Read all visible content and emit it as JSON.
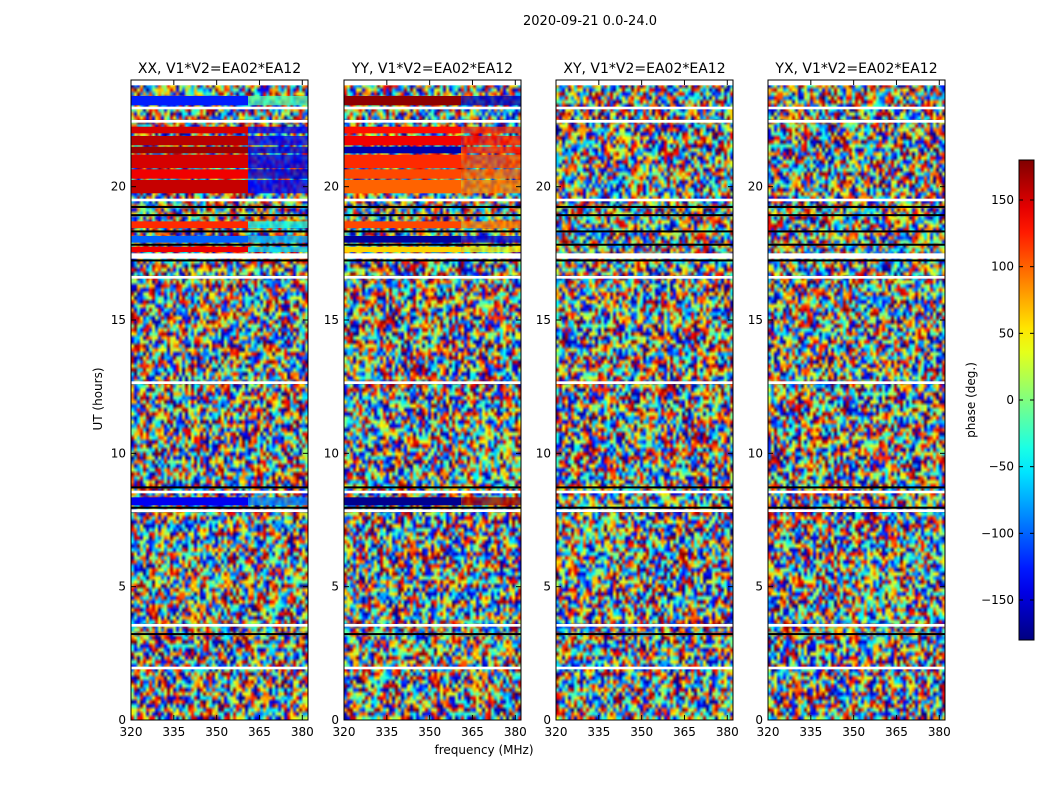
{
  "figure": {
    "suptitle": "2020-09-21 0.0-24.0",
    "xlabel": "frequency (MHz)",
    "ylabel": "UT (hours)",
    "colorbar_label": "phase (deg.)",
    "colorbar_ticks": [
      150,
      100,
      50,
      0,
      -50,
      -100,
      -150
    ],
    "colorbar_range": [
      -180,
      180
    ],
    "colors": {
      "axes": "#000000",
      "background": "#ffffff",
      "gap": "#ffffff",
      "flag": "#000000"
    }
  },
  "chart_data": [
    {
      "type": "heatmap",
      "title": "XX, V1*V2=EA02*EA12",
      "xlabel": "frequency (MHz)",
      "ylabel": "UT (hours)",
      "xlim": [
        320,
        382
      ],
      "ylim": [
        0,
        24
      ],
      "xticks": [
        320,
        335,
        350,
        365,
        380
      ],
      "yticks": [
        0,
        5,
        10,
        15,
        20
      ],
      "zlabel": "phase (deg.)",
      "zlim": [
        -180,
        180
      ],
      "coherent_bands": [
        {
          "t0": 23.05,
          "t1": 23.4,
          "f_break": 361,
          "phase_low_freq": -125,
          "phase_high_freq": -20
        },
        {
          "t0": 22.0,
          "t1": 22.25,
          "f_break": 361,
          "phase_low_freq": 150,
          "phase_high_freq": -140
        },
        {
          "t0": 21.55,
          "t1": 21.9,
          "f_break": 361,
          "phase_low_freq": 160,
          "phase_high_freq": -140
        },
        {
          "t0": 21.25,
          "t1": 21.5,
          "f_break": 361,
          "phase_low_freq": 170,
          "phase_high_freq": -150
        },
        {
          "t0": 20.7,
          "t1": 21.2,
          "f_break": 361,
          "phase_low_freq": 150,
          "phase_high_freq": -145
        },
        {
          "t0": 20.3,
          "t1": 20.65,
          "f_break": 361,
          "phase_low_freq": 140,
          "phase_high_freq": -150
        },
        {
          "t0": 19.75,
          "t1": 20.25,
          "f_break": 361,
          "phase_low_freq": 155,
          "phase_high_freq": -140
        },
        {
          "t0": 18.45,
          "t1": 18.7,
          "f_break": 361,
          "phase_low_freq": 120,
          "phase_high_freq": -40
        },
        {
          "t0": 17.9,
          "t1": 18.15,
          "f_break": 361,
          "phase_low_freq": -100,
          "phase_high_freq": -70
        },
        {
          "t0": 17.55,
          "t1": 17.75,
          "f_break": 361,
          "phase_low_freq": 140,
          "phase_high_freq": -60
        },
        {
          "t0": 8.05,
          "t1": 8.35,
          "f_break": 361,
          "phase_low_freq": -140,
          "phase_high_freq": -90
        }
      ]
    },
    {
      "type": "heatmap",
      "title": "YY, V1*V2=EA02*EA12",
      "xlabel": "frequency (MHz)",
      "ylabel": "UT (hours)",
      "xlim": [
        320,
        382
      ],
      "ylim": [
        0,
        24
      ],
      "xticks": [
        320,
        335,
        350,
        365,
        380
      ],
      "yticks": [
        0,
        5,
        10,
        15,
        20
      ],
      "zlabel": "phase (deg.)",
      "zlim": [
        -180,
        180
      ],
      "coherent_bands": [
        {
          "t0": 23.05,
          "t1": 23.4,
          "f_break": 361,
          "phase_low_freq": 175,
          "phase_high_freq": -160
        },
        {
          "t0": 22.0,
          "t1": 22.25,
          "f_break": 361,
          "phase_low_freq": 130,
          "phase_high_freq": 120
        },
        {
          "t0": 21.55,
          "t1": 21.9,
          "f_break": 361,
          "phase_low_freq": 140,
          "phase_high_freq": 130
        },
        {
          "t0": 21.25,
          "t1": 21.5,
          "f_break": 361,
          "phase_low_freq": -165,
          "phase_high_freq": 125
        },
        {
          "t0": 20.7,
          "t1": 21.2,
          "f_break": 361,
          "phase_low_freq": 120,
          "phase_high_freq": 110
        },
        {
          "t0": 20.3,
          "t1": 20.65,
          "f_break": 361,
          "phase_low_freq": 110,
          "phase_high_freq": 100
        },
        {
          "t0": 19.75,
          "t1": 20.25,
          "f_break": 361,
          "phase_low_freq": 100,
          "phase_high_freq": 90
        },
        {
          "t0": 18.45,
          "t1": 18.7,
          "f_break": 361,
          "phase_low_freq": 110,
          "phase_high_freq": 90
        },
        {
          "t0": 17.9,
          "t1": 18.15,
          "f_break": 361,
          "phase_low_freq": -170,
          "phase_high_freq": -150
        },
        {
          "t0": 17.55,
          "t1": 17.75,
          "f_break": 361,
          "phase_low_freq": 60,
          "phase_high_freq": 40
        },
        {
          "t0": 8.05,
          "t1": 8.35,
          "f_break": 361,
          "phase_low_freq": -175,
          "phase_high_freq": 170
        }
      ]
    },
    {
      "type": "heatmap",
      "title": "XY, V1*V2=EA02*EA12",
      "xlabel": "frequency (MHz)",
      "ylabel": "UT (hours)",
      "xlim": [
        320,
        382
      ],
      "ylim": [
        0,
        24
      ],
      "xticks": [
        320,
        335,
        350,
        365,
        380
      ],
      "yticks": [
        0,
        5,
        10,
        15,
        20
      ],
      "zlabel": "phase (deg.)",
      "zlim": [
        -180,
        180
      ],
      "coherent_bands": []
    },
    {
      "type": "heatmap",
      "title": "YX, V1*V2=EA02*EA12",
      "xlabel": "frequency (MHz)",
      "ylabel": "UT (hours)",
      "xlim": [
        320,
        382
      ],
      "ylim": [
        0,
        24
      ],
      "xticks": [
        320,
        335,
        350,
        365,
        380
      ],
      "yticks": [
        0,
        5,
        10,
        15,
        20
      ],
      "zlabel": "phase (deg.)",
      "zlim": [
        -180,
        180
      ],
      "coherent_bands": []
    }
  ],
  "time_gaps_hours": [
    [
      23.8,
      24.0
    ],
    [
      22.9,
      23.0
    ],
    [
      22.4,
      22.5
    ],
    [
      19.45,
      19.55
    ],
    [
      17.3,
      17.5
    ],
    [
      16.55,
      16.65
    ],
    [
      12.6,
      12.7
    ],
    [
      8.5,
      8.6
    ],
    [
      7.8,
      7.9
    ],
    [
      3.5,
      3.6
    ],
    [
      1.9,
      2.0
    ]
  ],
  "flagged_rows_hours": [
    [
      19.2,
      19.28
    ],
    [
      18.9,
      18.97
    ],
    [
      18.3,
      18.36
    ],
    [
      17.8,
      17.86
    ],
    [
      17.2,
      17.27
    ],
    [
      8.7,
      8.76
    ],
    [
      7.95,
      8.0
    ],
    [
      3.2,
      3.26
    ]
  ]
}
